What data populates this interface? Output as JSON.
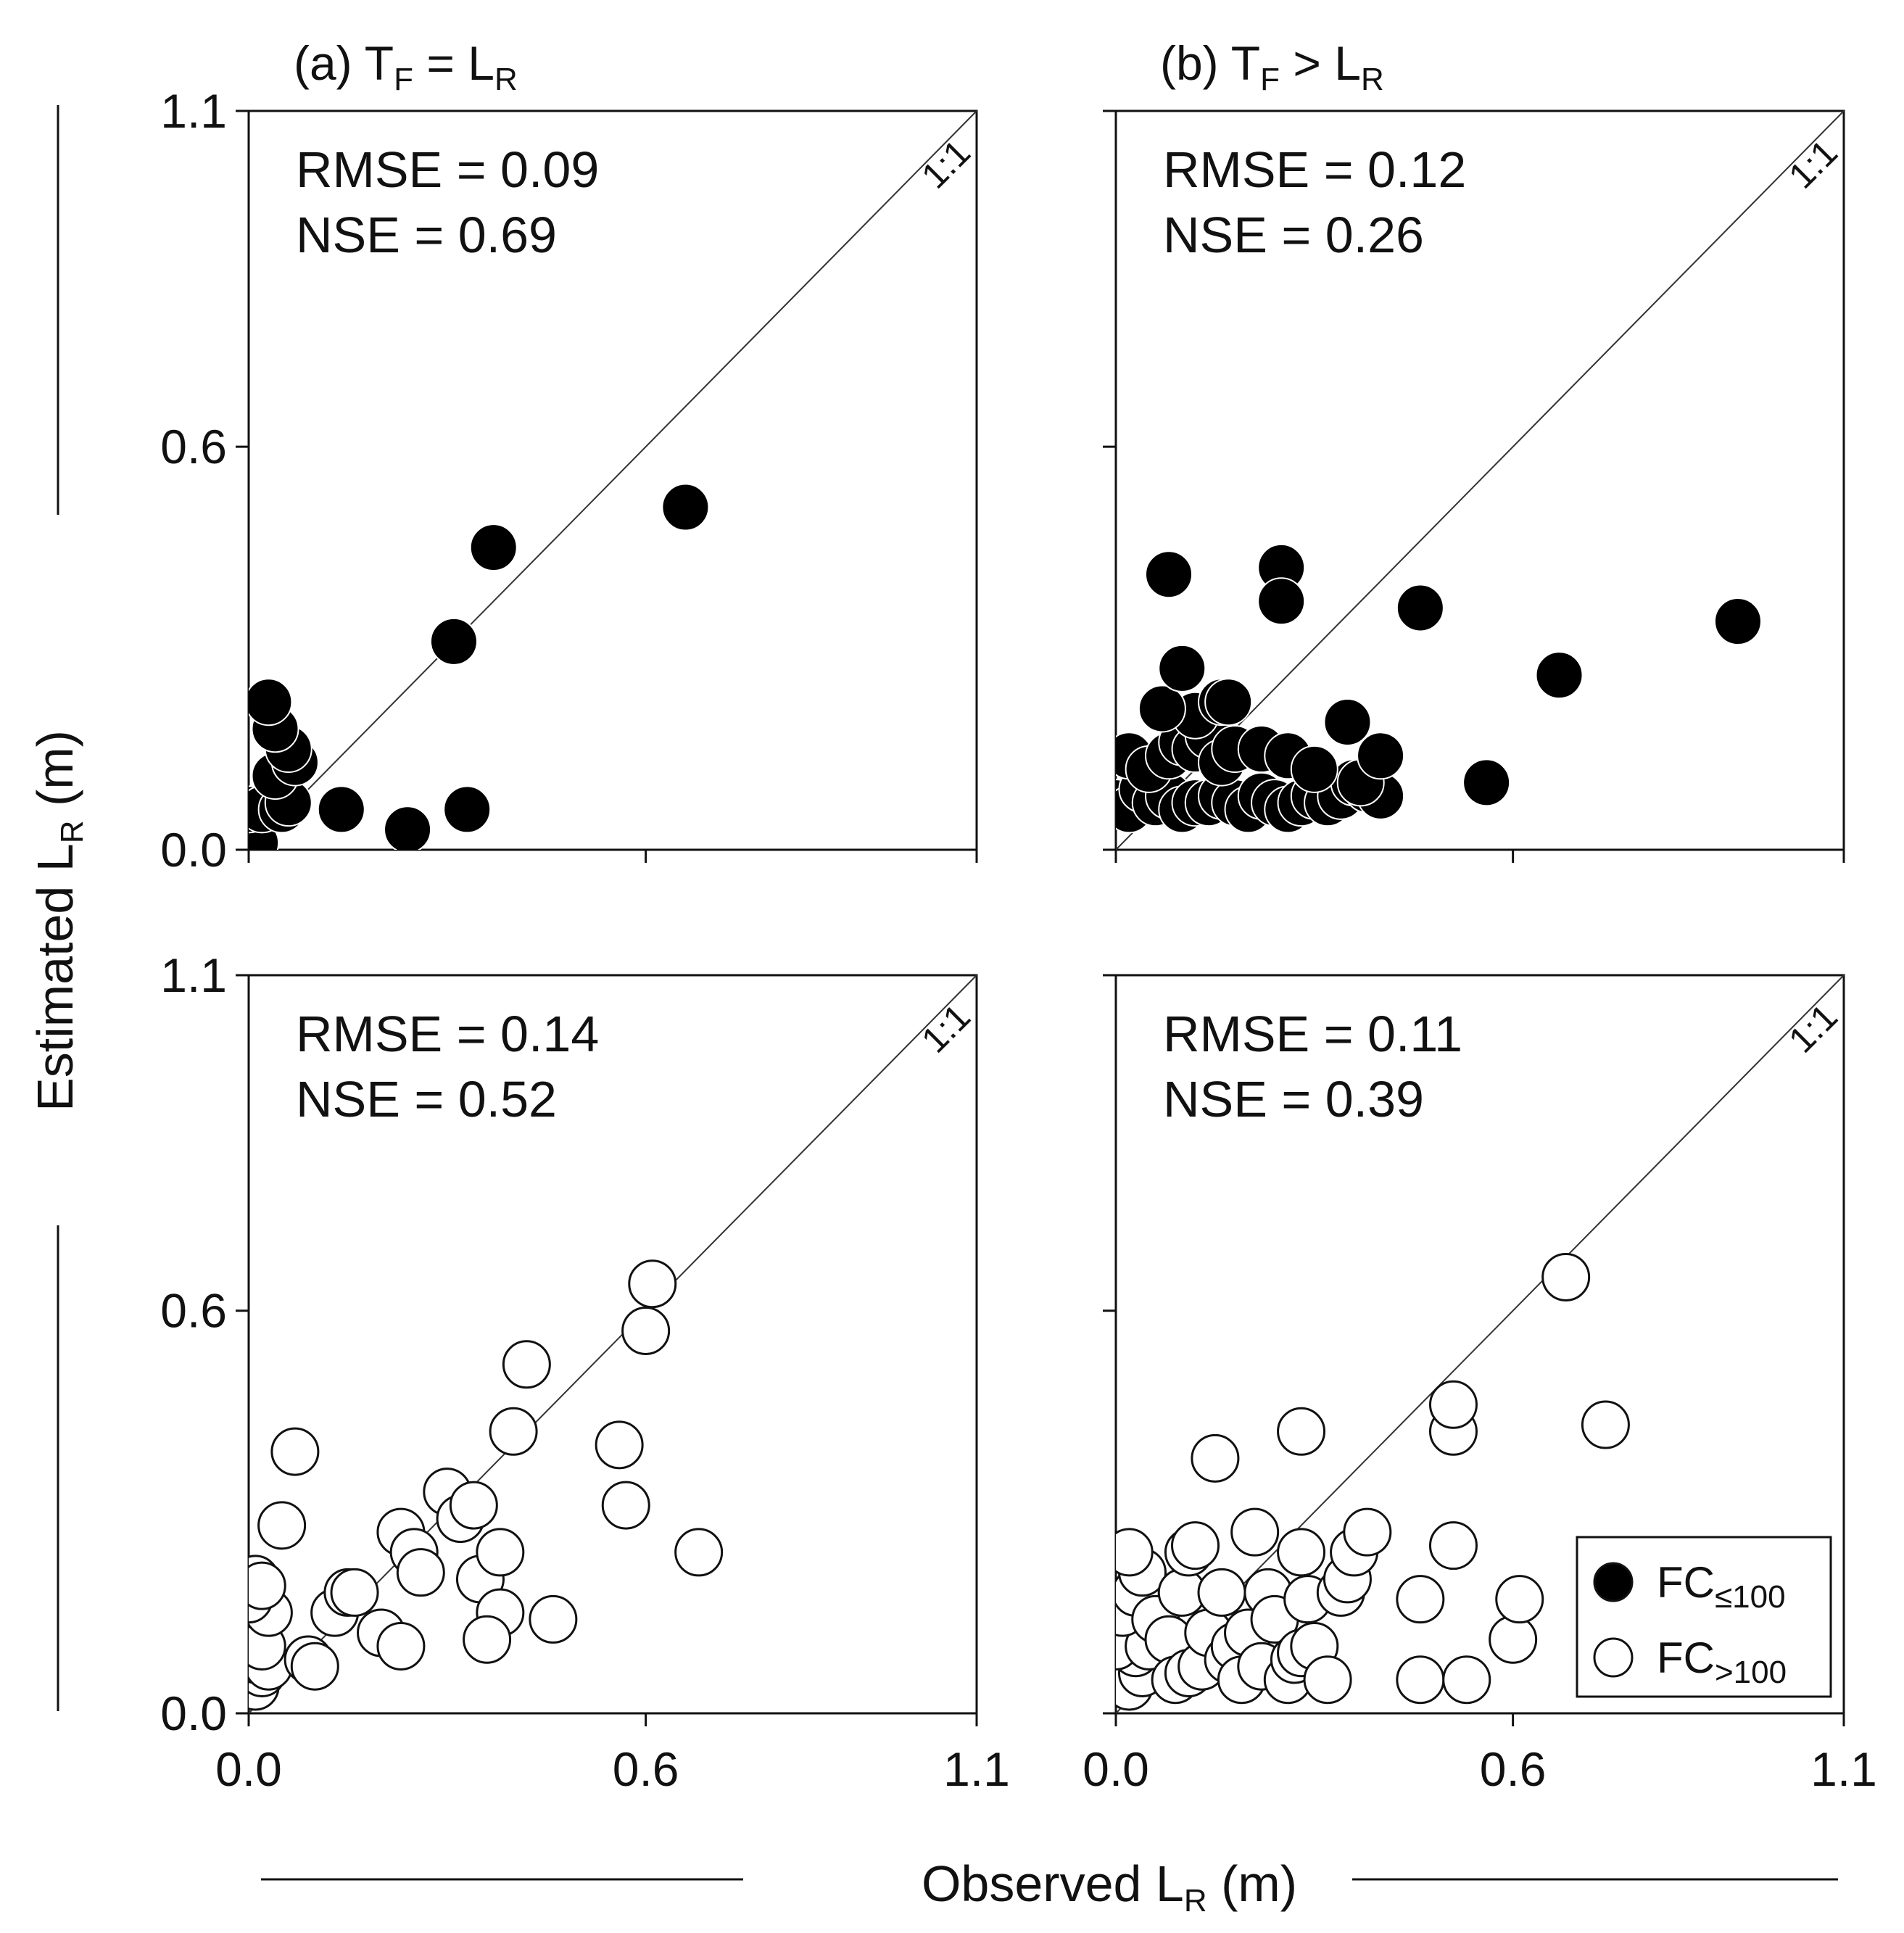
{
  "figure": {
    "xlabel": "Observed L",
    "xlabel_sub": "R",
    "xlabel_unit": " (m)",
    "ylabel": "Estimated L",
    "ylabel_sub": "R",
    "ylabel_unit": " (m)",
    "columns": [
      {
        "label_pre": "(a) T",
        "label_sub1": "F",
        "label_mid": " = L",
        "label_sub2": "R"
      },
      {
        "label_pre": "(b) T",
        "label_sub1": "F",
        "label_mid": " > L",
        "label_sub2": "R"
      }
    ],
    "ticks": [
      0.0,
      0.6,
      1.1
    ],
    "tick_labels": [
      "0.0",
      "0.6",
      "1.1"
    ],
    "one_to_one_label": "1:1",
    "legend": [
      {
        "label": "FC",
        "sub": "≤100",
        "style": "filled"
      },
      {
        "label": "FC",
        "sub": ">100",
        "style": "open"
      }
    ],
    "colors": {
      "filled": "#000000",
      "open_fill": "#ffffff",
      "stroke": "#111111",
      "line": "#333333"
    }
  },
  "chart_data": [
    {
      "type": "scatter",
      "panel": "top-left",
      "title": "(a) TF = LR",
      "xlabel": "Observed LR (m)",
      "ylabel": "Estimated LR (m)",
      "xlim": [
        0,
        1.1
      ],
      "ylim": [
        0,
        1.1
      ],
      "series": "FC≤100",
      "marker": "filled",
      "stats": [
        "RMSE = 0.09",
        "NSE = 0.69"
      ],
      "points": [
        [
          0.0,
          0.0
        ],
        [
          0.01,
          0.01
        ],
        [
          0.0,
          0.06
        ],
        [
          0.02,
          0.06
        ],
        [
          0.05,
          0.06
        ],
        [
          0.06,
          0.07
        ],
        [
          0.04,
          0.11
        ],
        [
          0.07,
          0.13
        ],
        [
          0.06,
          0.15
        ],
        [
          0.04,
          0.18
        ],
        [
          0.03,
          0.22
        ],
        [
          0.14,
          0.06
        ],
        [
          0.24,
          0.03
        ],
        [
          0.33,
          0.06
        ],
        [
          0.31,
          0.31
        ],
        [
          0.37,
          0.45
        ],
        [
          0.66,
          0.51
        ]
      ]
    },
    {
      "type": "scatter",
      "panel": "top-right",
      "title": "(b) TF > LR",
      "xlabel": "Observed LR (m)",
      "ylabel": "Estimated LR (m)",
      "xlim": [
        0,
        1.1
      ],
      "ylim": [
        0,
        1.1
      ],
      "series": "FC≤100",
      "marker": "filled",
      "stats": [
        "RMSE = 0.12",
        "NSE = 0.26"
      ],
      "points": [
        [
          0.0,
          0.07
        ],
        [
          0.02,
          0.06
        ],
        [
          0.04,
          0.09
        ],
        [
          0.06,
          0.07
        ],
        [
          0.08,
          0.08
        ],
        [
          0.1,
          0.06
        ],
        [
          0.12,
          0.07
        ],
        [
          0.14,
          0.07
        ],
        [
          0.16,
          0.08
        ],
        [
          0.18,
          0.07
        ],
        [
          0.2,
          0.06
        ],
        [
          0.22,
          0.08
        ],
        [
          0.24,
          0.07
        ],
        [
          0.26,
          0.06
        ],
        [
          0.28,
          0.07
        ],
        [
          0.3,
          0.08
        ],
        [
          0.32,
          0.07
        ],
        [
          0.34,
          0.08
        ],
        [
          0.36,
          0.1
        ],
        [
          0.38,
          0.09
        ],
        [
          0.4,
          0.08
        ],
        [
          0.02,
          0.14
        ],
        [
          0.05,
          0.12
        ],
        [
          0.08,
          0.14
        ],
        [
          0.1,
          0.16
        ],
        [
          0.12,
          0.15
        ],
        [
          0.14,
          0.17
        ],
        [
          0.16,
          0.13
        ],
        [
          0.18,
          0.15
        ],
        [
          0.22,
          0.15
        ],
        [
          0.26,
          0.14
        ],
        [
          0.3,
          0.12
        ],
        [
          0.37,
          0.1
        ],
        [
          0.4,
          0.14
        ],
        [
          0.12,
          0.2
        ],
        [
          0.16,
          0.22
        ],
        [
          0.07,
          0.21
        ],
        [
          0.1,
          0.27
        ],
        [
          0.17,
          0.22
        ],
        [
          0.35,
          0.19
        ],
        [
          0.08,
          0.41
        ],
        [
          0.25,
          0.42
        ],
        [
          0.25,
          0.37
        ],
        [
          0.46,
          0.36
        ],
        [
          0.67,
          0.26
        ],
        [
          0.56,
          0.1
        ],
        [
          0.94,
          0.34
        ]
      ]
    },
    {
      "type": "scatter",
      "panel": "bottom-left",
      "xlabel": "Observed LR (m)",
      "ylabel": "Estimated LR (m)",
      "xlim": [
        0,
        1.1
      ],
      "ylim": [
        0,
        1.1
      ],
      "series": "FC>100",
      "marker": "open",
      "stats": [
        "RMSE = 0.14",
        "NSE = 0.52"
      ],
      "points": [
        [
          0.0,
          0.05
        ],
        [
          0.01,
          0.04
        ],
        [
          0.02,
          0.06
        ],
        [
          0.01,
          0.08
        ],
        [
          0.03,
          0.07
        ],
        [
          0.02,
          0.1
        ],
        [
          0.03,
          0.15
        ],
        [
          0.0,
          0.17
        ],
        [
          0.01,
          0.2
        ],
        [
          0.02,
          0.19
        ],
        [
          0.05,
          0.28
        ],
        [
          0.07,
          0.39
        ],
        [
          0.09,
          0.08
        ],
        [
          0.1,
          0.07
        ],
        [
          0.13,
          0.15
        ],
        [
          0.15,
          0.18
        ],
        [
          0.16,
          0.18
        ],
        [
          0.2,
          0.12
        ],
        [
          0.23,
          0.1
        ],
        [
          0.23,
          0.27
        ],
        [
          0.25,
          0.24
        ],
        [
          0.26,
          0.21
        ],
        [
          0.3,
          0.33
        ],
        [
          0.32,
          0.29
        ],
        [
          0.34,
          0.31
        ],
        [
          0.35,
          0.2
        ],
        [
          0.38,
          0.24
        ],
        [
          0.38,
          0.15
        ],
        [
          0.36,
          0.11
        ],
        [
          0.4,
          0.42
        ],
        [
          0.42,
          0.52
        ],
        [
          0.46,
          0.14
        ],
        [
          0.56,
          0.4
        ],
        [
          0.57,
          0.31
        ],
        [
          0.6,
          0.57
        ],
        [
          0.61,
          0.64
        ],
        [
          0.68,
          0.24
        ]
      ]
    },
    {
      "type": "scatter",
      "panel": "bottom-right",
      "xlabel": "Observed LR (m)",
      "ylabel": "Estimated LR (m)",
      "xlim": [
        0,
        1.1
      ],
      "ylim": [
        0,
        1.1
      ],
      "series": "FC>100",
      "marker": "open",
      "stats": [
        "RMSE = 0.11",
        "NSE = 0.39"
      ],
      "points": [
        [
          0.0,
          0.05
        ],
        [
          0.02,
          0.04
        ],
        [
          0.04,
          0.06
        ],
        [
          0.03,
          0.09
        ],
        [
          0.0,
          0.1
        ],
        [
          0.05,
          0.1
        ],
        [
          0.01,
          0.15
        ],
        [
          0.03,
          0.18
        ],
        [
          0.04,
          0.21
        ],
        [
          0.02,
          0.24
        ],
        [
          0.06,
          0.14
        ],
        [
          0.08,
          0.11
        ],
        [
          0.09,
          0.05
        ],
        [
          0.11,
          0.06
        ],
        [
          0.13,
          0.07
        ],
        [
          0.1,
          0.18
        ],
        [
          0.11,
          0.24
        ],
        [
          0.12,
          0.25
        ],
        [
          0.14,
          0.12
        ],
        [
          0.16,
          0.18
        ],
        [
          0.17,
          0.08
        ],
        [
          0.18,
          0.1
        ],
        [
          0.19,
          0.05
        ],
        [
          0.2,
          0.12
        ],
        [
          0.22,
          0.07
        ],
        [
          0.23,
          0.18
        ],
        [
          0.24,
          0.14
        ],
        [
          0.26,
          0.05
        ],
        [
          0.27,
          0.08
        ],
        [
          0.28,
          0.09
        ],
        [
          0.29,
          0.17
        ],
        [
          0.3,
          0.1
        ],
        [
          0.32,
          0.05
        ],
        [
          0.34,
          0.18
        ],
        [
          0.35,
          0.2
        ],
        [
          0.36,
          0.24
        ],
        [
          0.38,
          0.27
        ],
        [
          0.21,
          0.27
        ],
        [
          0.28,
          0.24
        ],
        [
          0.15,
          0.38
        ],
        [
          0.28,
          0.42
        ],
        [
          0.46,
          0.05
        ],
        [
          0.46,
          0.17
        ],
        [
          0.53,
          0.05
        ],
        [
          0.51,
          0.25
        ],
        [
          0.51,
          0.42
        ],
        [
          0.51,
          0.46
        ],
        [
          0.6,
          0.11
        ],
        [
          0.61,
          0.17
        ],
        [
          0.68,
          0.65
        ],
        [
          0.74,
          0.43
        ]
      ]
    }
  ]
}
